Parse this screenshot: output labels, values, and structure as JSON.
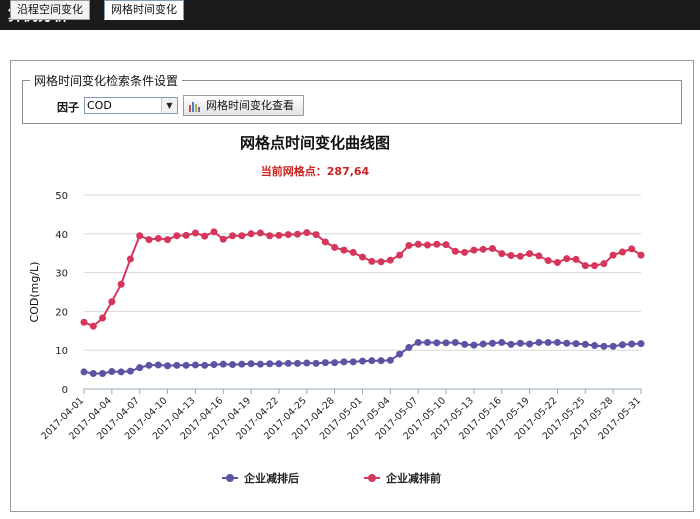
{
  "window": {
    "title": "算例分析"
  },
  "tabs": [
    {
      "label": "沿程空间变化",
      "active": false
    },
    {
      "label": "网格时间变化",
      "active": true
    }
  ],
  "filter": {
    "legend": "网格时间变化检索条件设置",
    "factor_label": "因子",
    "factor_value": "COD",
    "query_button": "网格时间变化查看"
  },
  "chart_data": {
    "type": "line",
    "title": "网格点时间变化曲线图",
    "subtitle": "当前网格点：287,64",
    "ylabel": "COD(mg/L)",
    "xlabel": "",
    "ylim": [
      0,
      50
    ],
    "yticks": [
      0,
      10,
      20,
      30,
      40,
      50
    ],
    "grid": true,
    "legend_position": "bottom",
    "x": [
      "2017-04-01",
      "2017-04-02",
      "2017-04-03",
      "2017-04-04",
      "2017-04-05",
      "2017-04-06",
      "2017-04-07",
      "2017-04-08",
      "2017-04-09",
      "2017-04-10",
      "2017-04-11",
      "2017-04-12",
      "2017-04-13",
      "2017-04-14",
      "2017-04-15",
      "2017-04-16",
      "2017-04-17",
      "2017-04-18",
      "2017-04-19",
      "2017-04-20",
      "2017-04-21",
      "2017-04-22",
      "2017-04-23",
      "2017-04-24",
      "2017-04-25",
      "2017-04-26",
      "2017-04-27",
      "2017-04-28",
      "2017-04-29",
      "2017-04-30",
      "2017-05-01",
      "2017-05-02",
      "2017-05-03",
      "2017-05-04",
      "2017-05-05",
      "2017-05-06",
      "2017-05-07",
      "2017-05-08",
      "2017-05-09",
      "2017-05-10",
      "2017-05-11",
      "2017-05-12",
      "2017-05-13",
      "2017-05-14",
      "2017-05-15",
      "2017-05-16",
      "2017-05-17",
      "2017-05-18",
      "2017-05-19",
      "2017-05-20",
      "2017-05-21",
      "2017-05-22",
      "2017-05-23",
      "2017-05-24",
      "2017-05-25",
      "2017-05-26",
      "2017-05-27",
      "2017-05-28",
      "2017-05-29",
      "2017-05-30",
      "2017-05-31"
    ],
    "xticks": [
      "2017-04-01",
      "2017-04-04",
      "2017-04-07",
      "2017-04-10",
      "2017-04-13",
      "2017-04-16",
      "2017-04-19",
      "2017-04-22",
      "2017-04-25",
      "2017-04-28",
      "2017-05-01",
      "2017-05-04",
      "2017-05-07",
      "2017-05-10",
      "2017-05-13",
      "2017-05-16",
      "2017-05-19",
      "2017-05-22",
      "2017-05-25",
      "2017-05-28",
      "2017-05-31"
    ],
    "series": [
      {
        "name": "企业减排后",
        "color": "#5b54a4",
        "values": [
          4.4,
          4.0,
          4.0,
          4.5,
          4.4,
          4.6,
          5.5,
          6.1,
          6.2,
          6.0,
          6.1,
          6.1,
          6.2,
          6.1,
          6.3,
          6.4,
          6.3,
          6.4,
          6.5,
          6.4,
          6.5,
          6.5,
          6.6,
          6.6,
          6.7,
          6.6,
          6.8,
          6.8,
          7.0,
          7.0,
          7.2,
          7.3,
          7.3,
          7.4,
          9.0,
          10.7,
          12.0,
          12.0,
          11.9,
          11.9,
          12.0,
          11.5,
          11.3,
          11.6,
          11.8,
          12.0,
          11.5,
          11.8,
          11.6,
          12.0,
          12.0,
          12.0,
          11.8,
          11.7,
          11.5,
          11.2,
          11.0,
          11.0,
          11.4,
          11.6,
          11.7
        ]
      },
      {
        "name": "企业减排前",
        "color": "#d4375b",
        "values": [
          17.2,
          16.2,
          18.3,
          22.5,
          27.0,
          33.5,
          39.5,
          38.5,
          38.8,
          38.5,
          39.5,
          39.6,
          40.2,
          39.4,
          40.5,
          38.6,
          39.5,
          39.5,
          40.0,
          40.2,
          39.5,
          39.6,
          39.8,
          39.9,
          40.3,
          39.8,
          37.9,
          36.5,
          35.8,
          35.2,
          34.0,
          32.9,
          32.8,
          33.2,
          34.5,
          37.0,
          37.3,
          37.1,
          37.3,
          37.2,
          35.5,
          35.2,
          35.8,
          36.0,
          36.2,
          34.9,
          34.4,
          34.2,
          34.9,
          34.3,
          33.1,
          32.6,
          33.6,
          33.4,
          31.8,
          31.8,
          32.3,
          34.5,
          35.3,
          36.1,
          34.5
        ]
      }
    ]
  }
}
